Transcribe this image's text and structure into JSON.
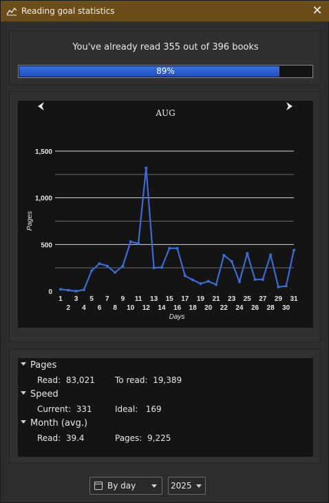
{
  "window": {
    "title": "Reading goal statistics",
    "icon": "line-chart-icon",
    "close_icon": "close-icon"
  },
  "summary": {
    "text": "You've already read 355 out of 396 books",
    "progress_fraction": 0.89,
    "progress_label": "89%"
  },
  "chart": {
    "month": "AUG",
    "prev_icon": "chevron-left-icon",
    "next_icon": "chevron-right-icon"
  },
  "chart_data": {
    "type": "line",
    "title": "",
    "xlabel": "Days",
    "ylabel": "Pages",
    "ylim": [
      0,
      1500
    ],
    "yticks": [
      {
        "value": 0,
        "label": "0"
      },
      {
        "value": 500,
        "label": "500"
      },
      {
        "value": 1000,
        "label": "1,000"
      },
      {
        "value": 1500,
        "label": "1,500"
      }
    ],
    "grid": true,
    "x": [
      1,
      2,
      3,
      4,
      5,
      6,
      7,
      8,
      9,
      10,
      11,
      12,
      13,
      14,
      15,
      16,
      17,
      18,
      19,
      20,
      21,
      22,
      23,
      24,
      25,
      26,
      27,
      28,
      29,
      30,
      31
    ],
    "series": [
      {
        "color": "#3a6cd6",
        "values": [
          20,
          10,
          0,
          15,
          220,
          295,
          270,
          200,
          270,
          530,
          510,
          1320,
          250,
          255,
          460,
          460,
          165,
          120,
          80,
          105,
          70,
          385,
          320,
          100,
          405,
          125,
          125,
          390,
          45,
          55,
          440
        ]
      }
    ]
  },
  "stats": {
    "pages": {
      "label": "Pages",
      "read_label": "Read:",
      "read_value": "83,021",
      "toread_label": "To read:",
      "toread_value": "19,389"
    },
    "speed": {
      "label": "Speed",
      "current_label": "Current:",
      "current_value": "331",
      "ideal_label": "Ideal:",
      "ideal_value": "169"
    },
    "month": {
      "label": "Month (avg.)",
      "read_label": "Read:",
      "read_value": "39.4",
      "pages_label": "Pages:",
      "pages_value": "9,225"
    }
  },
  "controls": {
    "period_icon": "calendar-icon",
    "period_value": "By day",
    "year_value": "2025"
  }
}
